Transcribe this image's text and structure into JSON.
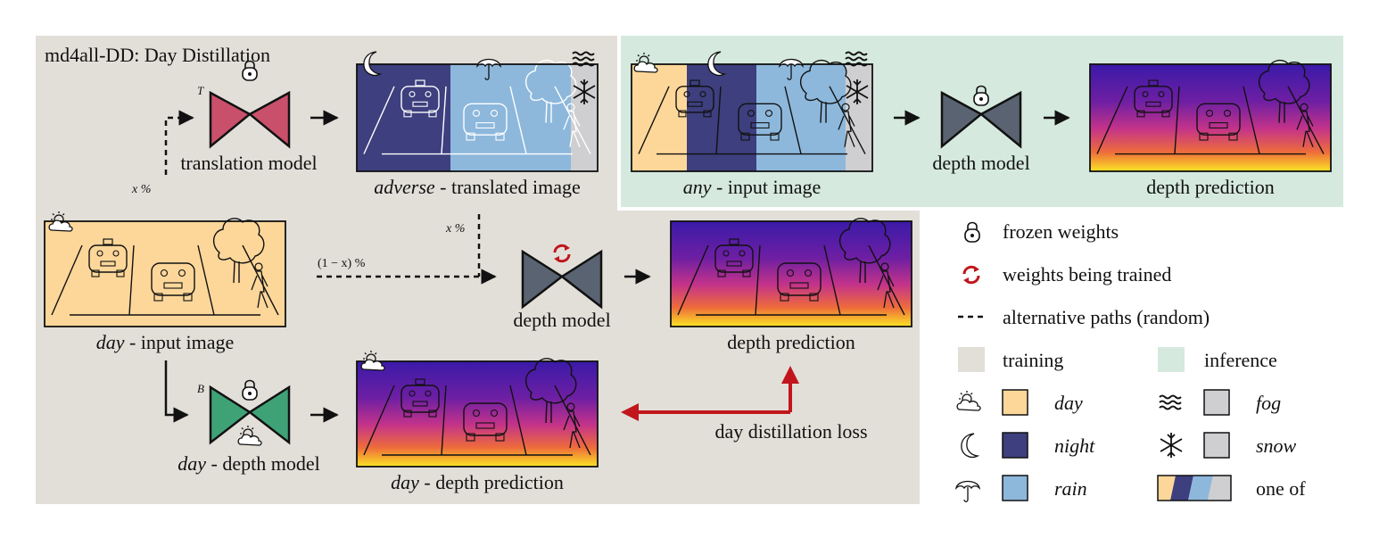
{
  "title": "md4all-DD: Day Distillation",
  "labels": {
    "translation_model": "translation model",
    "adverse_italic": "adverse",
    "adverse_rest": " - translated image",
    "day_italic": "day",
    "input_rest": " - input image",
    "depth_model": "depth model",
    "depth_prediction": "depth prediction",
    "day_depth_model_rest": " - depth model",
    "day_depth_pred_rest": " - depth prediction",
    "any_italic": "any",
    "any_input_rest": " - input image",
    "loss": "day distillation loss",
    "x_pct_1": "x %",
    "x_pct_2": "x %",
    "one_minus_x": "(1 − x) %",
    "T": "T",
    "B": "B"
  },
  "legend": {
    "frozen": "frozen weights",
    "training_weights": "weights being trained",
    "alt_paths": "alternative paths (random)",
    "training": "training",
    "inference": "inference",
    "day": "day",
    "night": "night",
    "rain": "rain",
    "fog": "fog",
    "snow": "snow",
    "one_of": "one of"
  },
  "colors": {
    "training_bg": "#e2dfd9",
    "inference_bg": "#d5e9df",
    "day": "#fdd79a",
    "night": "#3d3f7e",
    "rain": "#8db8dc",
    "fog": "#cfcfd1",
    "snow": "#cfcfd1",
    "translation_model": "#c9506b",
    "depth_model": "#5a6371",
    "day_depth_model": "#3fa276",
    "loss_arrow": "#c0161c"
  }
}
